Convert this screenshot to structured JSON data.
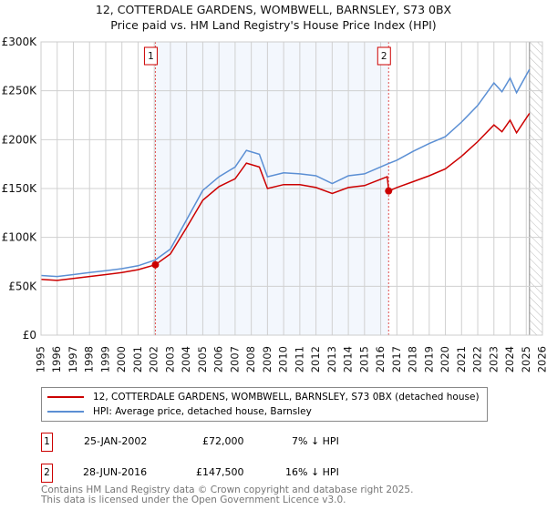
{
  "chart_data": {
    "type": "line",
    "title": "12, COTTERDALE GARDENS, WOMBWELL, BARNSLEY, S73 0BX",
    "subtitle": "Price paid vs. HM Land Registry's House Price Index (HPI)",
    "xlim": [
      1995,
      2026
    ],
    "ylim": [
      0,
      300000
    ],
    "x_ticks": [
      "1995",
      "1996",
      "1997",
      "1998",
      "1999",
      "2000",
      "2001",
      "2002",
      "2003",
      "2004",
      "2005",
      "2006",
      "2007",
      "2008",
      "2009",
      "2010",
      "2011",
      "2012",
      "2013",
      "2014",
      "2015",
      "2016",
      "2017",
      "2018",
      "2019",
      "2020",
      "2021",
      "2022",
      "2023",
      "2024",
      "2025",
      "2026"
    ],
    "y_ticks": [
      {
        "v": 0,
        "label": "£0"
      },
      {
        "v": 50000,
        "label": "£50K"
      },
      {
        "v": 100000,
        "label": "£100K"
      },
      {
        "v": 150000,
        "label": "£150K"
      },
      {
        "v": 200000,
        "label": "£200K"
      },
      {
        "v": 250000,
        "label": "£250K"
      },
      {
        "v": 300000,
        "label": "£300K"
      }
    ],
    "grid": true,
    "series": [
      {
        "name": "12, COTTERDALE GARDENS, WOMBWELL, BARNSLEY, S73 0BX (detached house)",
        "color": "#cc0000",
        "x": [
          1995,
          1996,
          1997,
          1998,
          1999,
          2000,
          2001,
          2002.07,
          2003,
          2004,
          2005,
          2006,
          2007,
          2007.7,
          2008.5,
          2009,
          2010,
          2011,
          2012,
          2013,
          2014,
          2015,
          2016.4,
          2016.5,
          2017,
          2018,
          2019,
          2020,
          2021,
          2022,
          2023,
          2023.5,
          2024,
          2024.4,
          2025.2
        ],
        "y": [
          57000,
          56000,
          58000,
          60000,
          62000,
          64000,
          67000,
          72000,
          83000,
          110000,
          138000,
          152000,
          160000,
          176000,
          172000,
          150000,
          154000,
          154000,
          151000,
          145000,
          151000,
          153000,
          162000,
          147500,
          151000,
          157000,
          163000,
          170000,
          183000,
          198000,
          215000,
          208000,
          220000,
          207000,
          227000
        ]
      },
      {
        "name": "HPI: Average price, detached house, Barnsley",
        "color": "#5b8fd4",
        "x": [
          1995,
          1996,
          1997,
          1998,
          1999,
          2000,
          2001,
          2002.07,
          2003,
          2004,
          2005,
          2006,
          2007,
          2007.7,
          2008.5,
          2009,
          2010,
          2011,
          2012,
          2013,
          2014,
          2015,
          2016.4,
          2017,
          2018,
          2019,
          2020,
          2021,
          2022,
          2023,
          2023.5,
          2024,
          2024.4,
          2025.2
        ],
        "y": [
          61000,
          60000,
          62000,
          64000,
          66000,
          68000,
          71000,
          77000,
          88000,
          118000,
          148000,
          162000,
          172000,
          189000,
          185000,
          162000,
          166000,
          165000,
          163000,
          155000,
          163000,
          165000,
          175000,
          179000,
          188000,
          196000,
          203000,
          218000,
          235000,
          258000,
          249000,
          263000,
          248000,
          272000
        ]
      }
    ],
    "annotations": [
      {
        "label": "1",
        "x": 2002.07,
        "y": 72000
      },
      {
        "label": "2",
        "x": 2016.49,
        "y": 147500
      }
    ],
    "shaded_range": [
      2002.07,
      2016.49
    ],
    "forecast_hatch_from": 2025.2
  },
  "legend": {
    "items": [
      "12, COTTERDALE GARDENS, WOMBWELL, BARNSLEY, S73 0BX (detached house)",
      "HPI: Average price, detached house, Barnsley"
    ]
  },
  "transactions": [
    {
      "num": "1",
      "date": "25-JAN-2002",
      "price": "£72,000",
      "hpi": "7% ↓ HPI"
    },
    {
      "num": "2",
      "date": "28-JUN-2016",
      "price": "£147,500",
      "hpi": "16% ↓ HPI"
    }
  ],
  "footer": {
    "line1": "Contains HM Land Registry data © Crown copyright and database right 2025.",
    "line2": "This data is licensed under the Open Government Licence v3.0."
  }
}
